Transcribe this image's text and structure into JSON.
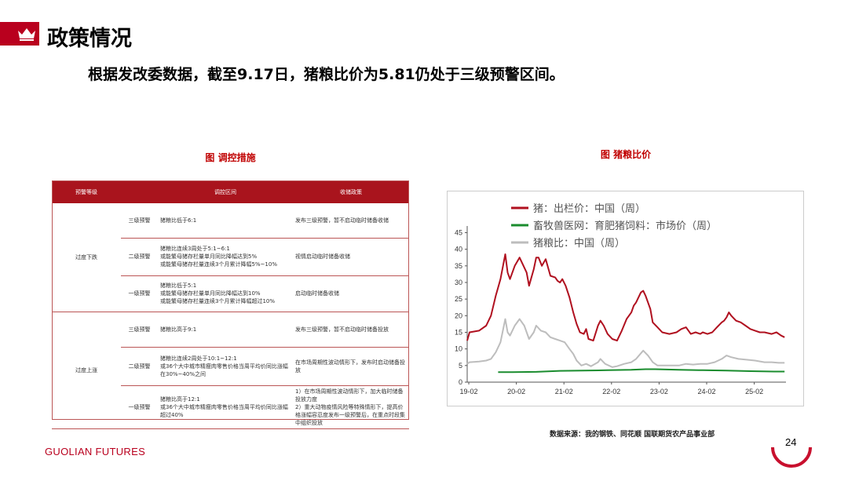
{
  "header": {
    "title": "政策情况",
    "subtitle": "根据发改委数据，截至9.17日，猪粮比价为5.81仍处于三级预警区间。"
  },
  "table": {
    "caption": "图 调控措施",
    "headers": [
      "预警等级",
      "调控区间",
      "收储政策"
    ],
    "groups": [
      {
        "name": "过度下跌",
        "rows": [
          {
            "level": "三级预警",
            "range": "猪粮比低于6:1",
            "policy": "发布三级预警，暂不启动临时储备收储"
          },
          {
            "level": "二级预警",
            "range": "猪粮比连续3周处于5:1~6:1\n或能繁母猪存栏量单月同比降幅达到5%\n或能繁母猪存栏量连续3个月累计降幅5%~10%",
            "policy": "视情启动临时储备收储"
          },
          {
            "level": "一级预警",
            "range": "猪粮比低于5:1\n或能繁母猪存栏量单月同比降幅达到10%\n或能繁母猪存栏量连续3个月累计降幅超过10%",
            "policy": "启动临时储备收储"
          }
        ]
      },
      {
        "name": "过度上涨",
        "rows": [
          {
            "level": "三级预警",
            "range": "猪粮比高于9:1",
            "policy": "发布三级预警，暂不启动临时储备投放"
          },
          {
            "level": "二级预警",
            "range": "猪粮比连续2周处于10:1~12:1\n或36个大中城市精瘦肉零售价格当周平均价同比涨幅在30%~40%之间",
            "policy": "在市场周期性波动情形下，发布时启动储备投放"
          },
          {
            "level": "一级预警",
            "range": "猪粮比高于12:1\n或36个大中城市精瘦肉零售价格当周平均价同比涨幅超过40%",
            "policy": "1）在市场周期性波动情形下，加大临时储备投放力度\n2）重大动物疫情风险等特殊情形下，提高价格涨幅容忍度发布一级预警后，在重点时段集中组织投放"
          }
        ]
      }
    ]
  },
  "chart": {
    "caption": "图 猪粮比价",
    "legend": [
      {
        "label": "猪：出栏价：中国（周）",
        "color": "#b0101f"
      },
      {
        "label": "畜牧兽医网：育肥猪饲料：市场价（周）",
        "color": "#1a8c2e"
      },
      {
        "label": "猪粮比：中国（周）",
        "color": "#bdbdbd"
      }
    ]
  },
  "chart_data": {
    "type": "line",
    "x_ticks": [
      "19-02",
      "20-02",
      "21-02",
      "22-02",
      "23-02",
      "24-02",
      "25-02"
    ],
    "y_ticks": [
      0,
      5,
      10,
      15,
      20,
      25,
      30,
      35,
      40,
      45
    ],
    "ylim": [
      0,
      47
    ],
    "xlim": [
      2019.05,
      2025.75
    ],
    "grid": false,
    "legend_position": "top-left",
    "series": [
      {
        "name": "猪：出栏价：中国（周）",
        "color": "#b0101f",
        "points": [
          [
            2019.0,
            12.5
          ],
          [
            2019.1,
            15
          ],
          [
            2019.3,
            15.5
          ],
          [
            2019.45,
            17
          ],
          [
            2019.55,
            20
          ],
          [
            2019.65,
            26
          ],
          [
            2019.75,
            31
          ],
          [
            2019.85,
            38.5
          ],
          [
            2019.9,
            33
          ],
          [
            2019.95,
            31
          ],
          [
            2020.05,
            35
          ],
          [
            2020.15,
            37.5
          ],
          [
            2020.2,
            36
          ],
          [
            2020.3,
            33
          ],
          [
            2020.35,
            29
          ],
          [
            2020.45,
            34
          ],
          [
            2020.5,
            37.5
          ],
          [
            2020.55,
            37.5
          ],
          [
            2020.62,
            35
          ],
          [
            2020.7,
            37
          ],
          [
            2020.75,
            34.5
          ],
          [
            2020.8,
            32
          ],
          [
            2020.9,
            31.5
          ],
          [
            2020.95,
            30.5
          ],
          [
            2021.0,
            30
          ],
          [
            2021.05,
            31
          ],
          [
            2021.12,
            29
          ],
          [
            2021.2,
            25.5
          ],
          [
            2021.28,
            21
          ],
          [
            2021.35,
            17.5
          ],
          [
            2021.42,
            15
          ],
          [
            2021.5,
            14.5
          ],
          [
            2021.55,
            16
          ],
          [
            2021.6,
            13
          ],
          [
            2021.7,
            12.5
          ],
          [
            2021.8,
            17
          ],
          [
            2021.85,
            18.5
          ],
          [
            2021.92,
            17
          ],
          [
            2022.0,
            14.5
          ],
          [
            2022.1,
            13
          ],
          [
            2022.2,
            12.5
          ],
          [
            2022.3,
            15.5
          ],
          [
            2022.4,
            19
          ],
          [
            2022.5,
            21
          ],
          [
            2022.55,
            23
          ],
          [
            2022.6,
            24
          ],
          [
            2022.7,
            27
          ],
          [
            2022.75,
            27.5
          ],
          [
            2022.8,
            26
          ],
          [
            2022.9,
            22
          ],
          [
            2022.95,
            18
          ],
          [
            2023.05,
            16.5
          ],
          [
            2023.15,
            15
          ],
          [
            2023.3,
            14.5
          ],
          [
            2023.45,
            15
          ],
          [
            2023.55,
            16
          ],
          [
            2023.65,
            16.5
          ],
          [
            2023.75,
            14.5
          ],
          [
            2023.85,
            15
          ],
          [
            2023.95,
            14.5
          ],
          [
            2024.0,
            15
          ],
          [
            2024.1,
            14.5
          ],
          [
            2024.2,
            15
          ],
          [
            2024.3,
            16.5
          ],
          [
            2024.4,
            18
          ],
          [
            2024.45,
            18.5
          ],
          [
            2024.5,
            19.5
          ],
          [
            2024.55,
            21
          ],
          [
            2024.6,
            20
          ],
          [
            2024.7,
            18.5
          ],
          [
            2024.8,
            18
          ],
          [
            2024.9,
            17
          ],
          [
            2025.0,
            16
          ],
          [
            2025.1,
            15.5
          ],
          [
            2025.2,
            15
          ],
          [
            2025.3,
            15
          ],
          [
            2025.45,
            14.5
          ],
          [
            2025.55,
            15
          ],
          [
            2025.65,
            14
          ],
          [
            2025.72,
            13.5
          ]
        ]
      },
      {
        "name": "畜牧兽医网：育肥猪饲料：市场价（周）",
        "color": "#1a8c2e",
        "points": [
          [
            2019.7,
            3.0
          ],
          [
            2020.0,
            3.0
          ],
          [
            2020.5,
            3.1
          ],
          [
            2021.0,
            3.4
          ],
          [
            2021.5,
            3.5
          ],
          [
            2022.0,
            3.6
          ],
          [
            2022.5,
            3.7
          ],
          [
            2022.8,
            3.9
          ],
          [
            2023.0,
            3.9
          ],
          [
            2023.5,
            3.7
          ],
          [
            2024.0,
            3.6
          ],
          [
            2024.5,
            3.5
          ],
          [
            2025.0,
            3.3
          ],
          [
            2025.5,
            3.2
          ],
          [
            2025.72,
            3.2
          ]
        ]
      },
      {
        "name": "猪粮比：中国（周）",
        "color": "#bdbdbd",
        "points": [
          [
            2019.0,
            5.5
          ],
          [
            2019.1,
            6
          ],
          [
            2019.3,
            6.2
          ],
          [
            2019.45,
            6.5
          ],
          [
            2019.55,
            7
          ],
          [
            2019.65,
            9
          ],
          [
            2019.75,
            12
          ],
          [
            2019.85,
            19
          ],
          [
            2019.9,
            15
          ],
          [
            2019.95,
            14
          ],
          [
            2020.05,
            17
          ],
          [
            2020.15,
            19
          ],
          [
            2020.25,
            17
          ],
          [
            2020.35,
            13
          ],
          [
            2020.45,
            15
          ],
          [
            2020.5,
            17
          ],
          [
            2020.6,
            15.5
          ],
          [
            2020.7,
            15
          ],
          [
            2020.8,
            13.5
          ],
          [
            2020.9,
            13
          ],
          [
            2021.0,
            12.5
          ],
          [
            2021.1,
            12
          ],
          [
            2021.2,
            10
          ],
          [
            2021.28,
            8.5
          ],
          [
            2021.35,
            6.5
          ],
          [
            2021.45,
            5
          ],
          [
            2021.55,
            5.5
          ],
          [
            2021.65,
            4.8
          ],
          [
            2021.8,
            6
          ],
          [
            2021.85,
            7
          ],
          [
            2021.95,
            5.5
          ],
          [
            2022.1,
            4.5
          ],
          [
            2022.2,
            4.8
          ],
          [
            2022.35,
            5.5
          ],
          [
            2022.5,
            6
          ],
          [
            2022.6,
            7
          ],
          [
            2022.75,
            9.5
          ],
          [
            2022.85,
            8
          ],
          [
            2022.95,
            6
          ],
          [
            2023.05,
            5
          ],
          [
            2023.3,
            5
          ],
          [
            2023.5,
            5
          ],
          [
            2023.65,
            5.5
          ],
          [
            2023.8,
            5.3
          ],
          [
            2023.95,
            5.5
          ],
          [
            2024.1,
            5.5
          ],
          [
            2024.25,
            6
          ],
          [
            2024.4,
            7
          ],
          [
            2024.5,
            8
          ],
          [
            2024.6,
            7.5
          ],
          [
            2024.75,
            7
          ],
          [
            2024.9,
            6.8
          ],
          [
            2025.1,
            6.5
          ],
          [
            2025.3,
            6
          ],
          [
            2025.45,
            6
          ],
          [
            2025.6,
            5.8
          ],
          [
            2025.72,
            5.8
          ]
        ]
      }
    ]
  },
  "footer": {
    "source": "数据来源：我的钢铁、同花顺 国联期货农产品事业部",
    "brand_bold": "GUOLIAN",
    "brand_thin": "FUTURES",
    "page_number": "24"
  }
}
